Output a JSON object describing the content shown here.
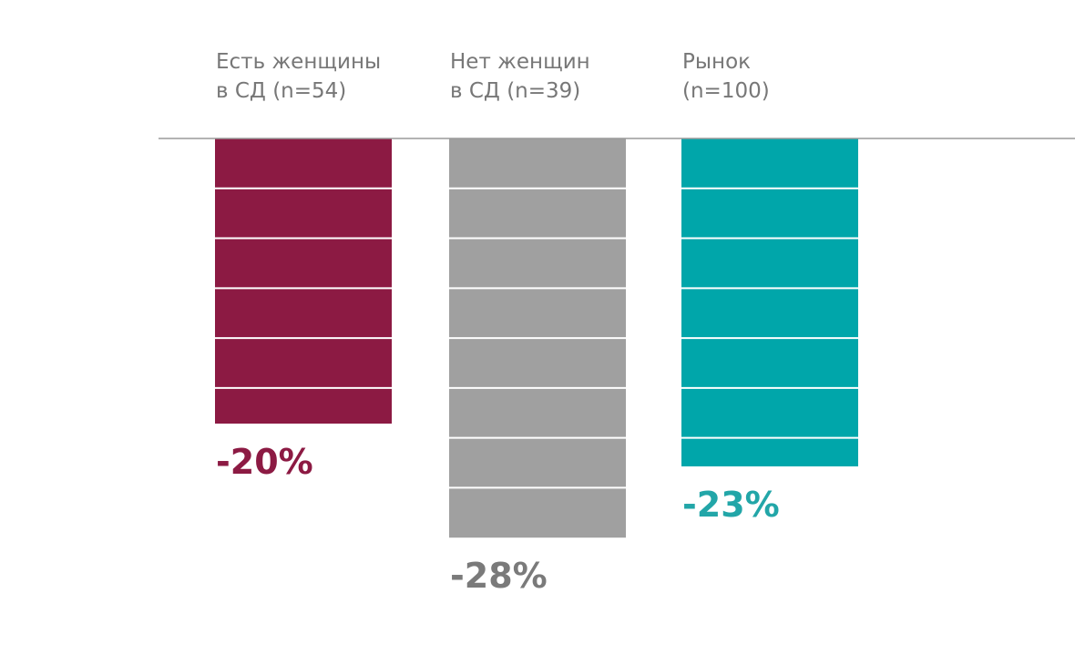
{
  "chart_data": {
    "type": "bar",
    "categories": [
      [
        "Есть женщины",
        "в СД (n=54)"
      ],
      [
        "Нет женщин",
        "в СД (n=39)"
      ],
      [
        "Рынок",
        "(n=100)"
      ]
    ],
    "values": [
      -20,
      -28,
      -23
    ],
    "value_labels": [
      "-20%",
      "-28%",
      "-23%"
    ],
    "colors": [
      "#8c1a43",
      "#a0a0a0",
      "#00a6aa"
    ],
    "label_colors": [
      "#8c1a43",
      "#7a7a7a",
      "#22a6a8"
    ],
    "value_axis": "bars hang downward from a zero baseline at the top",
    "gridlines": "white horizontal stripes at intervals of 3.5 units inside bars",
    "grid_step": 3.5
  }
}
